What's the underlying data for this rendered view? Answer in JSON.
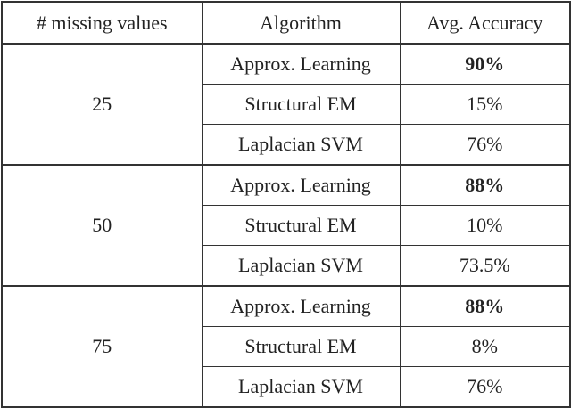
{
  "table": {
    "header": [
      "# missing values",
      "Algorithm",
      "Avg. Accuracy"
    ],
    "groups": [
      {
        "missing": "25",
        "rows": [
          [
            "Approx. Learning",
            "90%"
          ],
          [
            "Structural EM",
            "15%"
          ],
          [
            "Laplacian SVM",
            "76%"
          ]
        ]
      },
      {
        "missing": "50",
        "rows": [
          [
            "Approx. Learning",
            "88%"
          ],
          [
            "Structural EM",
            "10%"
          ],
          [
            "Laplacian SVM",
            "73.5%"
          ]
        ]
      },
      {
        "missing": "75",
        "rows": [
          [
            "Approx. Learning",
            "88%"
          ],
          [
            "Structural EM",
            "8%"
          ],
          [
            "Laplacian SVM",
            "76%"
          ]
        ]
      }
    ]
  }
}
